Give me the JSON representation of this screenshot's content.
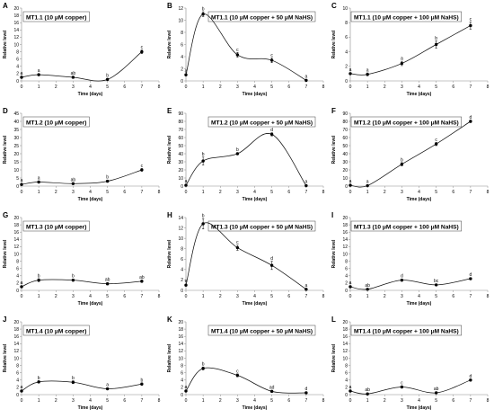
{
  "style": {
    "axis_color": "#8c8c8c",
    "line_color": "#111111",
    "marker_color": "#000000",
    "title_border_color": "#404040",
    "background": "#ffffff"
  },
  "chart_data": [
    {
      "panel": "A",
      "type": "line",
      "title": "MT1.1 (10 μM copper)",
      "xlabel": "Time (days)",
      "ylabel": "Relative level",
      "xlim": [
        0,
        8
      ],
      "xticks": [
        0,
        1,
        2,
        3,
        4,
        5,
        6,
        7,
        8
      ],
      "ylim": [
        0,
        20
      ],
      "yticks": [
        0,
        2,
        4,
        6,
        8,
        10,
        12,
        14,
        16,
        18,
        20
      ],
      "grid": false,
      "x": [
        0,
        1,
        3,
        5,
        7
      ],
      "y": [
        1.0,
        1.7,
        1.0,
        0.4,
        8.0
      ],
      "yerr": [
        0.1,
        0.2,
        0.2,
        0.1,
        0.5
      ],
      "labels": [
        "a",
        "a",
        "ab",
        "b",
        "c"
      ]
    },
    {
      "panel": "B",
      "type": "line",
      "title": "MT1.1 (10 μM copper + 50 μM NaHS)",
      "xlabel": "Time (days)",
      "ylabel": "Relative level",
      "xlim": [
        0,
        8
      ],
      "xticks": [
        0,
        1,
        2,
        3,
        4,
        5,
        6,
        7,
        8
      ],
      "ylim": [
        0,
        12
      ],
      "yticks": [
        0,
        2,
        4,
        6,
        8,
        10,
        12
      ],
      "grid": false,
      "x": [
        0,
        1,
        3,
        5,
        7
      ],
      "y": [
        1.0,
        11.0,
        4.3,
        3.4,
        0.1
      ],
      "yerr": [
        0.1,
        0.4,
        0.4,
        0.4,
        0.05
      ],
      "labels": [
        "a",
        "b",
        "c",
        "c",
        "a"
      ]
    },
    {
      "panel": "C",
      "type": "line",
      "title": "MT1.1 (10 μM copper + 100 μM NaHS)",
      "xlabel": "Time (days)",
      "ylabel": "Relative level",
      "xlim": [
        0,
        8
      ],
      "xticks": [
        0,
        1,
        2,
        3,
        4,
        5,
        6,
        7,
        8
      ],
      "ylim": [
        0,
        10
      ],
      "yticks": [
        0,
        2,
        4,
        6,
        8,
        10
      ],
      "grid": false,
      "x": [
        0,
        1,
        3,
        5,
        7
      ],
      "y": [
        1.0,
        0.9,
        2.4,
        5.0,
        7.6
      ],
      "yerr": [
        0.1,
        0.2,
        0.3,
        0.5,
        0.5
      ],
      "labels": [
        "a",
        "a",
        "a",
        "b",
        "c"
      ]
    },
    {
      "panel": "D",
      "type": "line",
      "title": "MT1.2 (10 μM copper)",
      "xlabel": "Time (days)",
      "ylabel": "Relative level",
      "xlim": [
        0,
        8
      ],
      "xticks": [
        0,
        1,
        2,
        3,
        4,
        5,
        6,
        7,
        8
      ],
      "ylim": [
        0,
        45
      ],
      "yticks": [
        0,
        5,
        10,
        15,
        20,
        25,
        30,
        35,
        40,
        45
      ],
      "grid": false,
      "x": [
        0,
        1,
        3,
        5,
        7
      ],
      "y": [
        1.0,
        2.5,
        1.5,
        3.0,
        10.0
      ],
      "yerr": [
        0.1,
        0.4,
        0.3,
        0.4,
        0.8
      ],
      "labels": [
        "a",
        "a",
        "ab",
        "b",
        "c"
      ]
    },
    {
      "panel": "E",
      "type": "line",
      "title": "MT1.2 (10 μM copper + 50 μM NaHS)",
      "xlabel": "Time (days)",
      "ylabel": "Relative level",
      "xlim": [
        0,
        8
      ],
      "xticks": [
        0,
        1,
        2,
        3,
        4,
        5,
        6,
        7,
        8
      ],
      "ylim": [
        0,
        90
      ],
      "yticks": [
        0,
        10,
        20,
        30,
        40,
        50,
        60,
        70,
        80,
        90
      ],
      "grid": false,
      "x": [
        0,
        1,
        3,
        5,
        7
      ],
      "y": [
        1.0,
        31.0,
        40.0,
        64.0,
        0.5
      ],
      "yerr": [
        0.2,
        5.0,
        1.0,
        2.0,
        0.3
      ],
      "labels": [
        "a",
        "b",
        "b",
        "d",
        "a"
      ]
    },
    {
      "panel": "F",
      "type": "line",
      "title": "MT1.2 (10 μM copper + 100 μM NaHS)",
      "xlabel": "Time (days)",
      "ylabel": "Relative level",
      "xlim": [
        0,
        8
      ],
      "xticks": [
        0,
        1,
        2,
        3,
        4,
        5,
        6,
        7,
        8
      ],
      "ylim": [
        0,
        90
      ],
      "yticks": [
        0,
        10,
        20,
        30,
        40,
        50,
        60,
        70,
        80,
        90
      ],
      "grid": false,
      "x": [
        0,
        1,
        3,
        5,
        7
      ],
      "y": [
        1.0,
        0.5,
        27.0,
        52.0,
        80.0
      ],
      "yerr": [
        0.2,
        0.2,
        2.0,
        2.0,
        1.5
      ],
      "labels": [
        "a",
        "a",
        "b",
        "c",
        "d"
      ]
    },
    {
      "panel": "G",
      "type": "line",
      "title": "MT1.3 (10 μM copper)",
      "xlabel": "Time (days)",
      "ylabel": "Relative level",
      "xlim": [
        0,
        8
      ],
      "xticks": [
        0,
        1,
        2,
        3,
        4,
        5,
        6,
        7,
        8
      ],
      "ylim": [
        0,
        20
      ],
      "yticks": [
        0,
        2,
        4,
        6,
        8,
        10,
        12,
        14,
        16,
        18,
        20
      ],
      "grid": false,
      "x": [
        0,
        1,
        3,
        5,
        7
      ],
      "y": [
        1.0,
        2.8,
        2.8,
        1.8,
        2.5
      ],
      "yerr": [
        0.1,
        0.4,
        0.3,
        0.3,
        0.3
      ],
      "labels": [
        "a",
        "b",
        "b",
        "ab",
        "ab"
      ]
    },
    {
      "panel": "H",
      "type": "line",
      "title": "MT1.3 (10 μM copper + 50 μM NaHS)",
      "xlabel": "Time (days)",
      "ylabel": "Relative level",
      "xlim": [
        0,
        8
      ],
      "xticks": [
        0,
        1,
        2,
        3,
        4,
        5,
        6,
        7,
        8
      ],
      "ylim": [
        0,
        14
      ],
      "yticks": [
        0,
        2,
        4,
        6,
        8,
        10,
        12,
        14
      ],
      "grid": false,
      "x": [
        0,
        1,
        3,
        5,
        7
      ],
      "y": [
        1.0,
        12.8,
        8.2,
        4.8,
        0.2
      ],
      "yerr": [
        0.1,
        1.0,
        0.5,
        0.8,
        0.1
      ],
      "labels": [
        "a",
        "b",
        "c",
        "d",
        "a"
      ]
    },
    {
      "panel": "I",
      "type": "line",
      "title": "MT1.3 (10 μM copper + 100 μM NaHS)",
      "xlabel": "Time (days)",
      "ylabel": "Relative level",
      "xlim": [
        0,
        8
      ],
      "xticks": [
        0,
        1,
        2,
        3,
        4,
        5,
        6,
        7,
        8
      ],
      "ylim": [
        0,
        20
      ],
      "yticks": [
        0,
        2,
        4,
        6,
        8,
        10,
        12,
        14,
        16,
        18,
        20
      ],
      "grid": false,
      "x": [
        0,
        1,
        3,
        5,
        7
      ],
      "y": [
        1.0,
        0.3,
        2.8,
        1.5,
        3.2
      ],
      "yerr": [
        0.1,
        0.1,
        0.3,
        0.2,
        0.3
      ],
      "labels": [
        "a",
        "ab",
        "d",
        "bc",
        "d"
      ]
    },
    {
      "panel": "J",
      "type": "line",
      "title": "MT1.4 (10 μM copper)",
      "xlabel": "Time (days)",
      "ylabel": "Relative level",
      "xlim": [
        0,
        8
      ],
      "xticks": [
        0,
        1,
        2,
        3,
        4,
        5,
        6,
        7,
        8
      ],
      "ylim": [
        0,
        20
      ],
      "yticks": [
        0,
        2,
        4,
        6,
        8,
        10,
        12,
        14,
        16,
        18,
        20
      ],
      "grid": false,
      "x": [
        0,
        1,
        3,
        5,
        7
      ],
      "y": [
        1.0,
        3.5,
        3.4,
        1.6,
        2.9
      ],
      "yerr": [
        0.1,
        0.3,
        0.4,
        0.2,
        0.3
      ],
      "labels": [
        "a",
        "b",
        "b",
        "a",
        "b"
      ]
    },
    {
      "panel": "K",
      "type": "line",
      "title": "MT1.4 (10 μM copper + 50 μM NaHS)",
      "xlabel": "Time (days)",
      "ylabel": "Relative level",
      "xlim": [
        0,
        8
      ],
      "xticks": [
        0,
        1,
        2,
        3,
        4,
        5,
        6,
        7,
        8
      ],
      "ylim": [
        0,
        20
      ],
      "yticks": [
        0,
        2,
        4,
        6,
        8,
        10,
        12,
        14,
        16,
        18,
        20
      ],
      "grid": false,
      "x": [
        0,
        1,
        3,
        5,
        7
      ],
      "y": [
        1.0,
        7.2,
        5.3,
        0.9,
        0.5
      ],
      "yerr": [
        0.1,
        0.4,
        0.4,
        0.2,
        0.1
      ],
      "labels": [
        "a",
        "b",
        "c",
        "ad",
        "d"
      ]
    },
    {
      "panel": "L",
      "type": "line",
      "title": "MT1.4 (10 μM copper + 100 μM NaHS)",
      "xlabel": "Time (days)",
      "ylabel": "Relative level",
      "xlim": [
        0,
        8
      ],
      "xticks": [
        0,
        1,
        2,
        3,
        4,
        5,
        6,
        7,
        8
      ],
      "ylim": [
        0,
        20
      ],
      "yticks": [
        0,
        2,
        4,
        6,
        8,
        10,
        12,
        14,
        16,
        18,
        20
      ],
      "grid": false,
      "x": [
        0,
        1,
        3,
        5,
        7
      ],
      "y": [
        1.0,
        0.2,
        2.1,
        0.5,
        4.0
      ],
      "yerr": [
        0.1,
        0.05,
        0.3,
        0.1,
        0.3
      ],
      "labels": [
        "a",
        "ab",
        "c",
        "ab",
        "d"
      ]
    }
  ]
}
